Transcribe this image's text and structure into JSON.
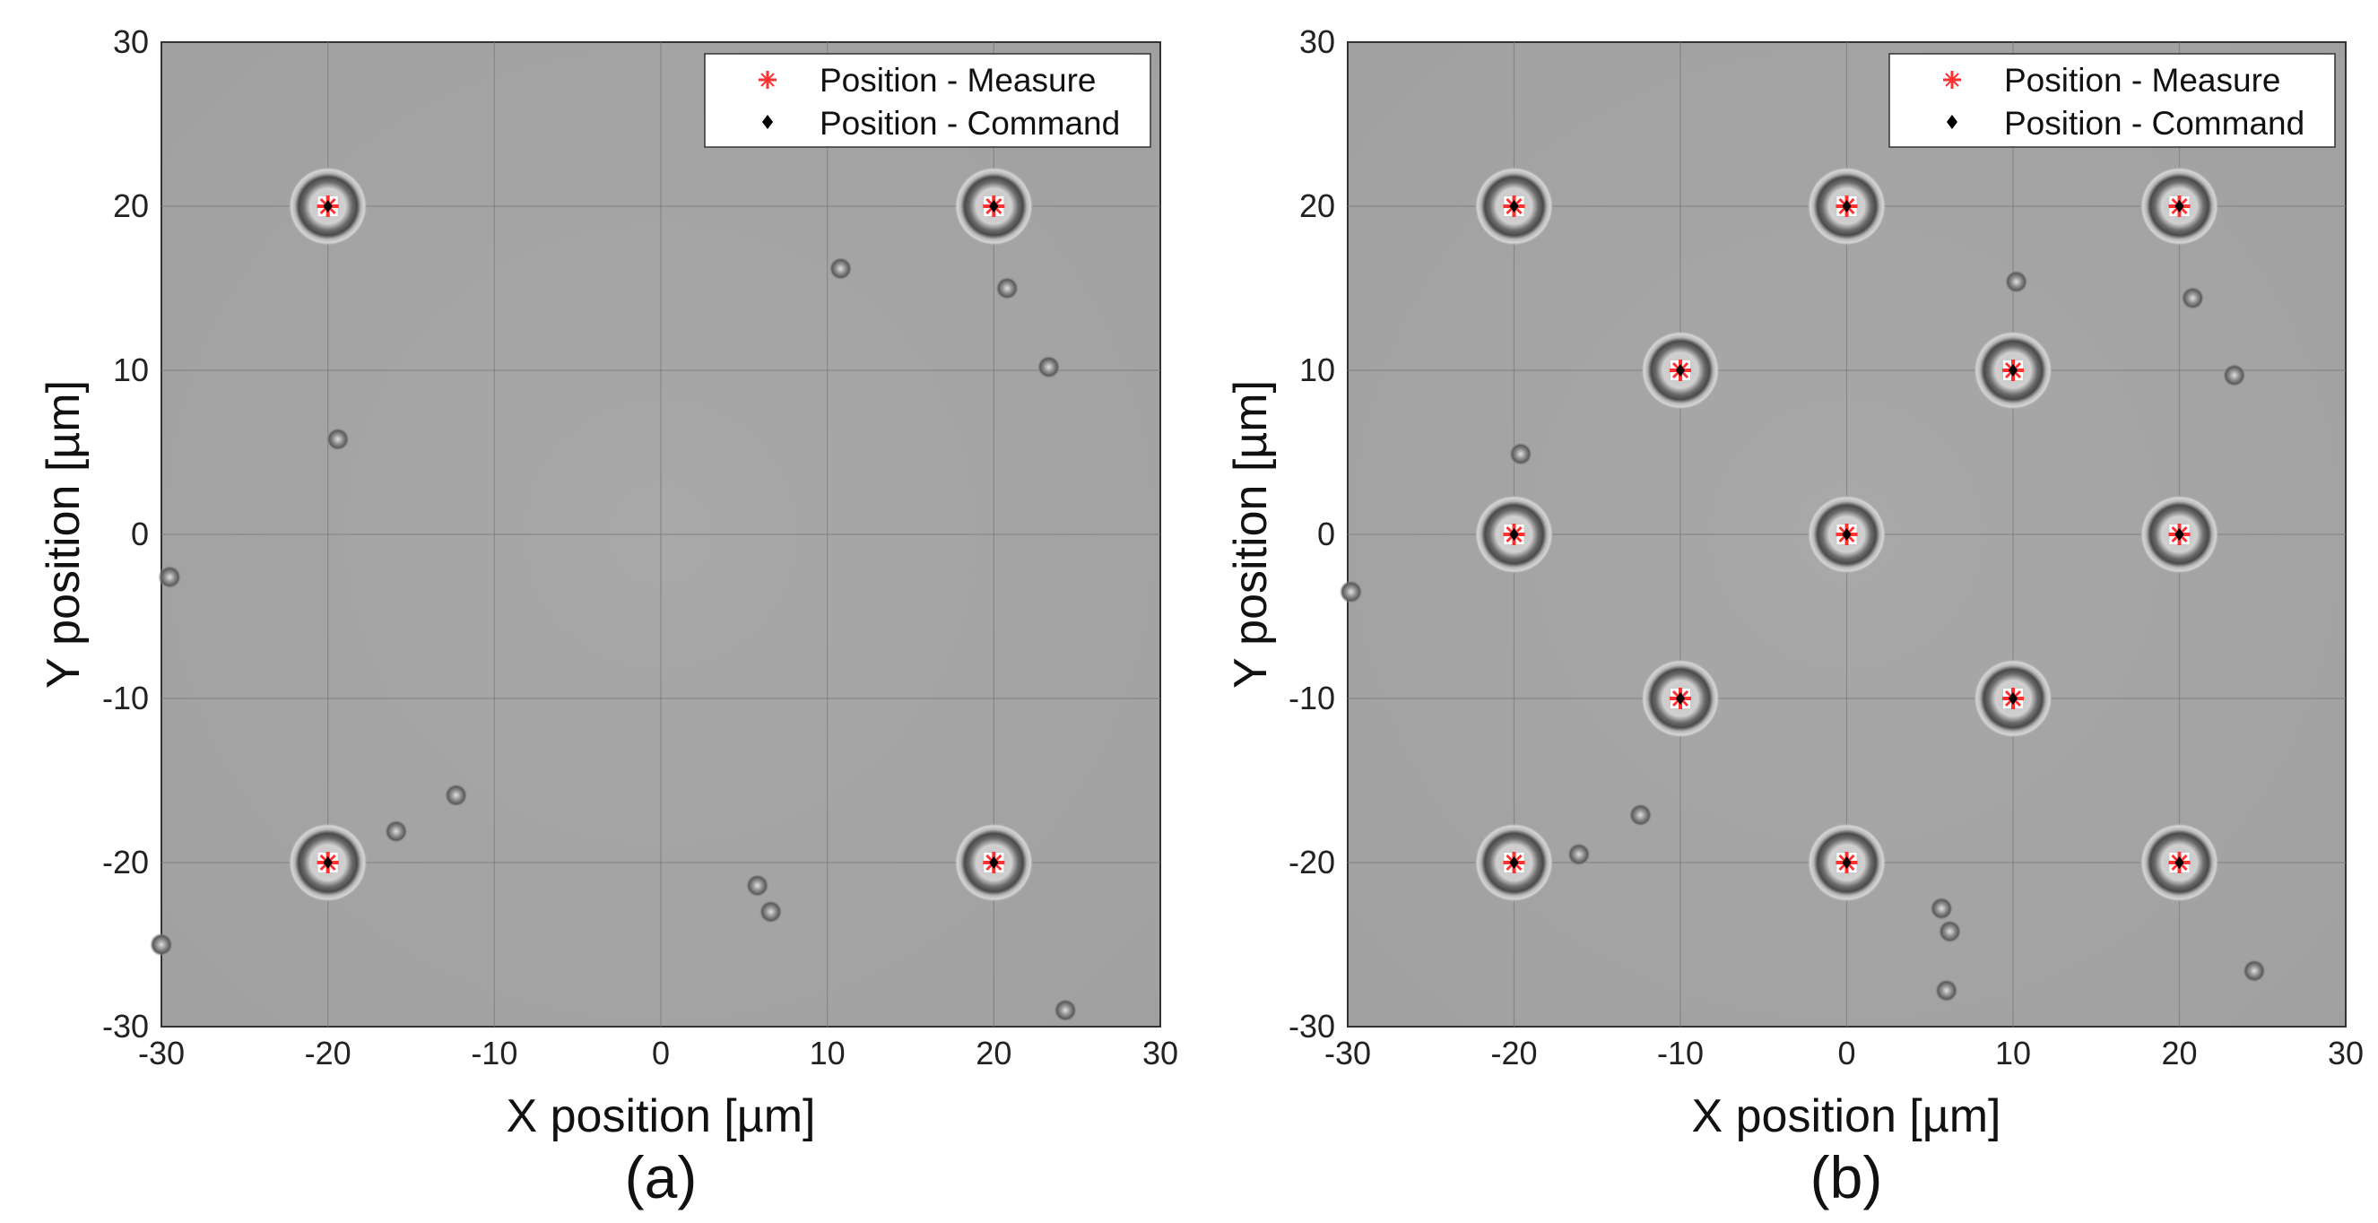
{
  "chart_data": [
    {
      "type": "scatter",
      "panel_label": "(a)",
      "xlabel": "X position [µm]",
      "ylabel": "Y position [µm]",
      "xlim": [
        -30,
        30
      ],
      "ylim": [
        -30,
        30
      ],
      "xticks": [
        "-30",
        "-20",
        "-10",
        "0",
        "10",
        "20",
        "30"
      ],
      "yticks": [
        "30",
        "20",
        "10",
        "0",
        "-10",
        "-20",
        "-30"
      ],
      "grid": true,
      "legend_position": "top-right",
      "series": [
        {
          "name": "Position - Measure",
          "color": "#ff3030",
          "x": [
            -20,
            20,
            -20,
            20
          ],
          "y": [
            20,
            20,
            -20,
            -20
          ]
        },
        {
          "name": "Position - Command",
          "color": "#000000",
          "x": [
            -20,
            20,
            -20,
            20
          ],
          "y": [
            20,
            20,
            -20,
            -20
          ]
        }
      ],
      "debris": [
        [
          10.8,
          16.2
        ],
        [
          20.8,
          15
        ],
        [
          23.3,
          10.2
        ],
        [
          -19.4,
          5.8
        ],
        [
          -29.5,
          -2.6
        ],
        [
          -12.3,
          -15.9
        ],
        [
          -15.9,
          -18.1
        ],
        [
          5.8,
          -21.4
        ],
        [
          6.6,
          -23
        ],
        [
          -30,
          -25
        ],
        [
          24.3,
          -29
        ]
      ]
    },
    {
      "type": "scatter",
      "panel_label": "(b)",
      "xlabel": "X position [µm]",
      "ylabel": "Y position [µm]",
      "xlim": [
        -30,
        30
      ],
      "ylim": [
        -30,
        30
      ],
      "xticks": [
        "-30",
        "-20",
        "-10",
        "0",
        "10",
        "20",
        "30"
      ],
      "yticks": [
        "30",
        "20",
        "10",
        "0",
        "-10",
        "-20",
        "-30"
      ],
      "grid": true,
      "legend_position": "top-right",
      "series": [
        {
          "name": "Position - Measure",
          "color": "#ff3030",
          "x": [
            -20,
            0,
            20,
            -10,
            10,
            -20,
            0,
            20,
            -10,
            10,
            -20,
            0,
            20
          ],
          "y": [
            20,
            20,
            20,
            10,
            10,
            0,
            0,
            0,
            -10,
            -10,
            -20,
            -20,
            -20
          ]
        },
        {
          "name": "Position - Command",
          "color": "#000000",
          "x": [
            -20,
            0,
            20,
            -10,
            10,
            -20,
            0,
            20,
            -10,
            10,
            -20,
            0,
            20
          ],
          "y": [
            20,
            20,
            20,
            10,
            10,
            0,
            0,
            0,
            -10,
            -10,
            -20,
            -20,
            -20
          ]
        }
      ],
      "debris": [
        [
          10.2,
          15.4
        ],
        [
          20.8,
          14.4
        ],
        [
          23.3,
          9.7
        ],
        [
          -19.6,
          4.9
        ],
        [
          -29.8,
          -3.5
        ],
        [
          -12.4,
          -17.1
        ],
        [
          -16.1,
          -19.5
        ],
        [
          5.7,
          -22.8
        ],
        [
          6.2,
          -24.2
        ],
        [
          6,
          -27.8
        ],
        [
          24.5,
          -26.6
        ]
      ]
    }
  ]
}
